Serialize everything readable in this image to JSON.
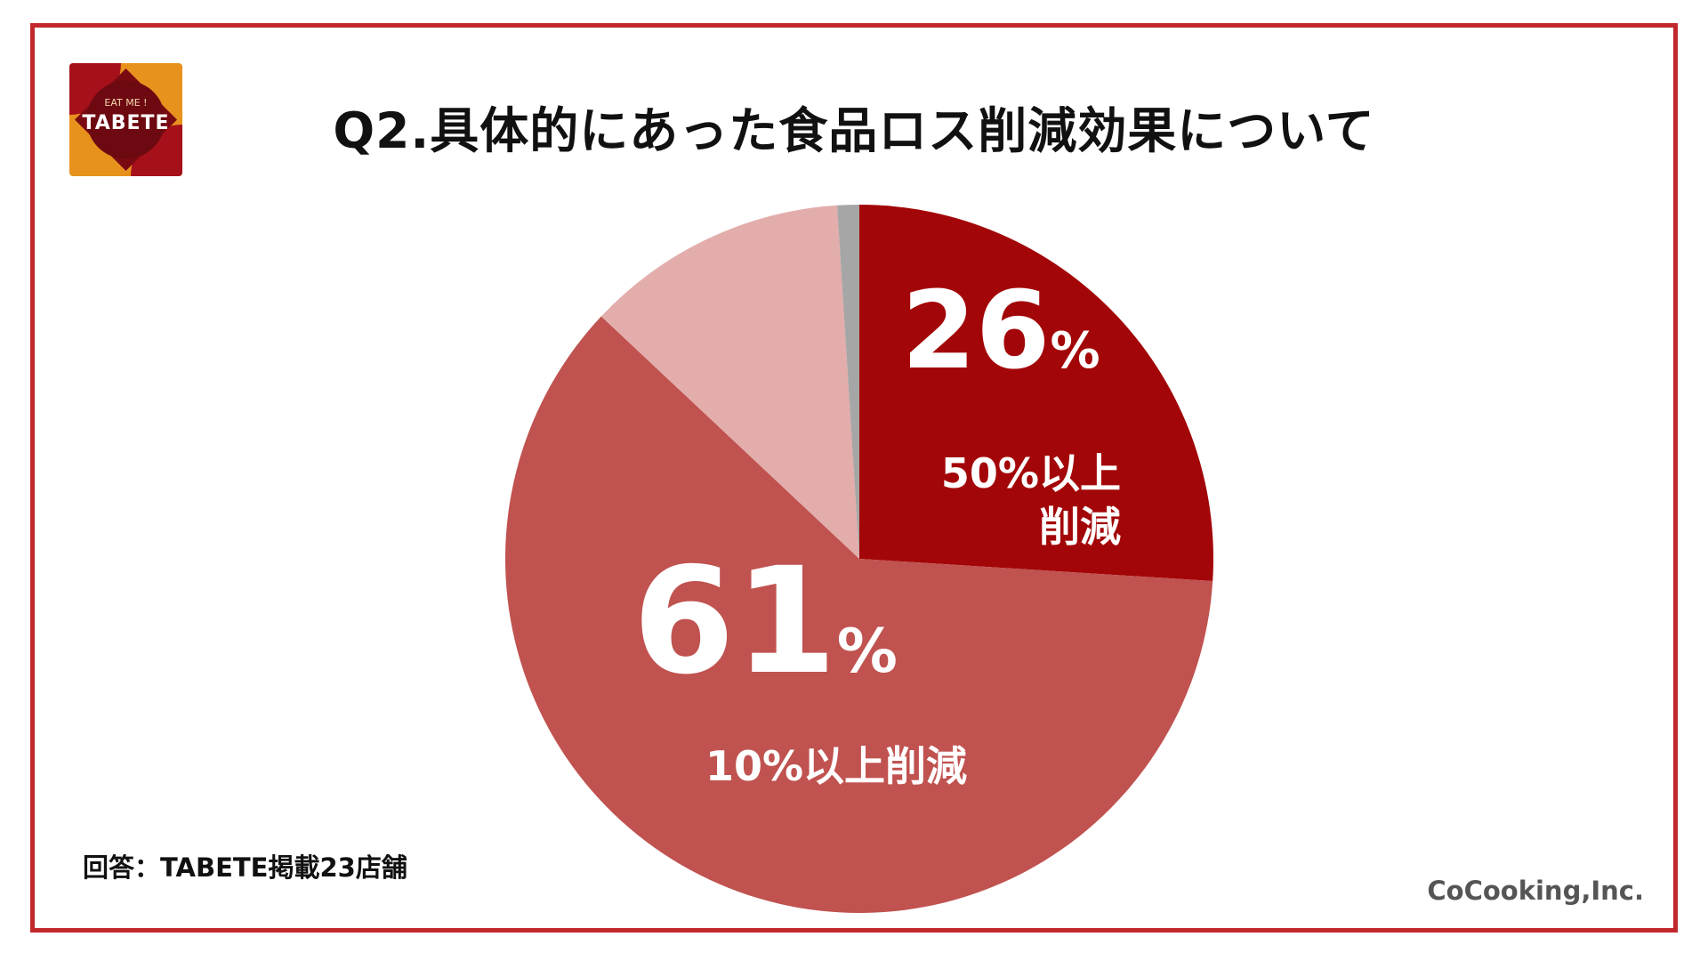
{
  "logo": {
    "tagline": "EAT ME !",
    "name": "TABETE"
  },
  "title": "Q2.具体的にあった食品ロス削減効果について",
  "note": "回答：TABETE掲載23店舗",
  "credit": "CoCooking,Inc.",
  "colors": {
    "border": "#c1272d",
    "slice_50": "#a30608",
    "slice_10": "#c0524f",
    "slice_other": "#e2adab",
    "slice_grey": "#a6a6a6"
  },
  "chart_data": {
    "type": "pie",
    "start": "12 o'clock, clockwise",
    "slices": [
      {
        "label": "50%以上\n削減",
        "label_lines": [
          "50%以上",
          "削減"
        ],
        "value": 26,
        "value_text": "26",
        "unit": "%",
        "color": "#a30608"
      },
      {
        "label": "10%以上削減",
        "label_lines": [
          "10%以上削減"
        ],
        "value": 61,
        "value_text": "61",
        "unit": "%",
        "color": "#c0524f"
      },
      {
        "label": "",
        "label_lines": [],
        "value": 12,
        "value_text": "",
        "unit": "",
        "color": "#e2adab"
      },
      {
        "label": "",
        "label_lines": [],
        "value": 1,
        "value_text": "",
        "unit": "",
        "color": "#a6a6a6"
      }
    ]
  }
}
